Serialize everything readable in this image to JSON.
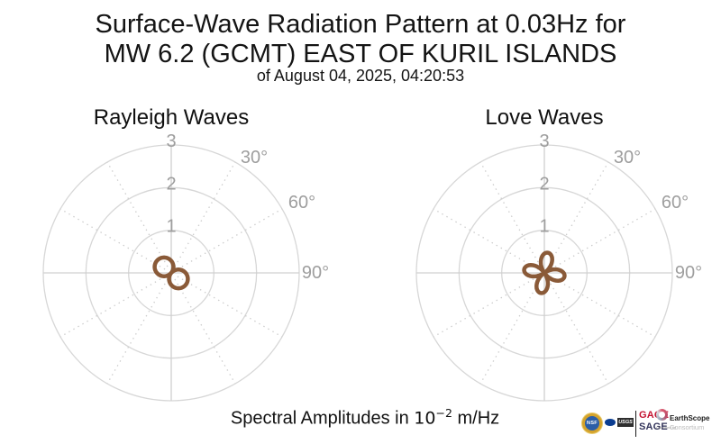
{
  "title": {
    "line1": "Surface-Wave Radiation Pattern at 0.03Hz for",
    "line2": "MW 6.2 (GCMT) EAST OF KURIL ISLANDS",
    "subtitle": "of August 04, 2025, 04:20:53"
  },
  "caption": {
    "prefix": "Spectral Amplitudes in ",
    "base": "10",
    "exponent": "−2",
    "suffix": " m/Hz"
  },
  "colors": {
    "background": "#ffffff",
    "text": "#141414",
    "tick_labels": "#9e9e9e",
    "grid_circles": "#d7d7d7",
    "grid_axes": "#d0d0d0",
    "grid_dotted": "#cbcbcb",
    "pattern_stroke": "#8a5a38"
  },
  "chart_data": [
    {
      "type": "polar_radiation_pattern",
      "title": "Rayleigh Waves",
      "radial_ticks": [
        1,
        2,
        3
      ],
      "radial_max": 3,
      "angle_labels": [
        "30°",
        "60°",
        "90°"
      ],
      "azimuth_convention": "degrees clockwise from top (0° = up)",
      "pattern": {
        "lobes": 2,
        "model": "r = amplitude * |cos(k * (theta - axis_deg))|",
        "k": 1,
        "amplitude": 0.44,
        "axis_deg": 130,
        "azimuth_step_deg": 15,
        "samples": [
          0.28,
          0.19,
          0.08,
          0.04,
          0.15,
          0.25,
          0.34,
          0.4,
          0.43,
          0.44,
          0.41,
          0.36,
          0.28,
          0.19,
          0.08,
          0.04,
          0.15,
          0.25,
          0.34,
          0.4,
          0.43,
          0.44,
          0.41,
          0.36
        ]
      }
    },
    {
      "type": "polar_radiation_pattern",
      "title": "Love Waves",
      "radial_ticks": [
        1,
        2,
        3
      ],
      "radial_max": 3,
      "angle_labels": [
        "30°",
        "60°",
        "90°"
      ],
      "azimuth_convention": "degrees clockwise from top (0° = up)",
      "pattern": {
        "lobes": 4,
        "model": "r = amplitude * |cos(k * (theta - axis_deg))|",
        "k": 2,
        "amplitude": 0.48,
        "axis_deg": 10,
        "azimuth_step_deg": 15,
        "samples": [
          0.45,
          0.47,
          0.37,
          0.16,
          0.08,
          0.31,
          0.45,
          0.47,
          0.37,
          0.16,
          0.08,
          0.31,
          0.45,
          0.47,
          0.37,
          0.16,
          0.08,
          0.31,
          0.45,
          0.47,
          0.37,
          0.16,
          0.08,
          0.31
        ]
      }
    }
  ],
  "logos": {
    "nsf_label": "NSF",
    "usgs_label": "USGS",
    "gage_label": "GAGE",
    "sage_label": "SAGE",
    "earthscope_name": "EarthScope",
    "earthscope_subtitle": "Consortium",
    "earthscope_operated_by": "Operated by"
  }
}
